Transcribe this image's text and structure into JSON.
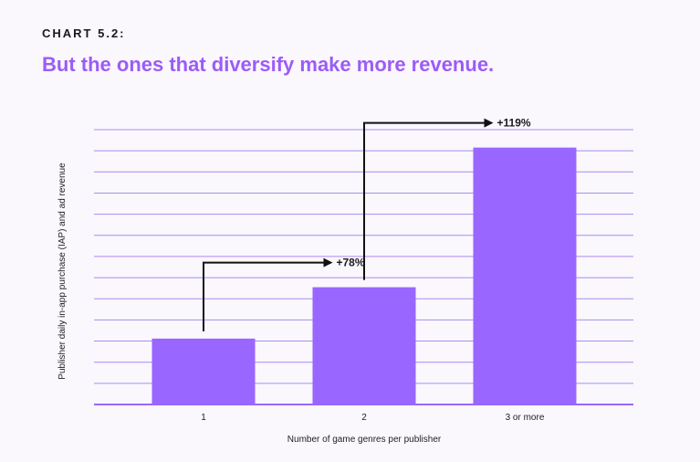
{
  "header": {
    "chart_label": "CHART 5.2:",
    "title": "But the ones that diversify make more revenue."
  },
  "colors": {
    "title": "#9b5cf6",
    "bar": "#9966ff",
    "gridline": "#a98cf0",
    "baseline": "#9966ff",
    "background": "#faf7fd"
  },
  "chart_data": {
    "type": "bar",
    "categories": [
      "1",
      "2",
      "3 or more"
    ],
    "values": [
      1.0,
      1.78,
      3.9
    ],
    "xlabel": "Number of game genres per publisher",
    "ylabel": "Publisher daily in-app purchase (IAP) and ad revenue",
    "ylim": [
      0,
      4.2
    ],
    "grid": true,
    "gridlines": 13,
    "annotations": [
      {
        "from": "1",
        "to": "2",
        "label": "+78%"
      },
      {
        "from": "2",
        "to": "3 or more",
        "label": "+119%"
      }
    ]
  }
}
